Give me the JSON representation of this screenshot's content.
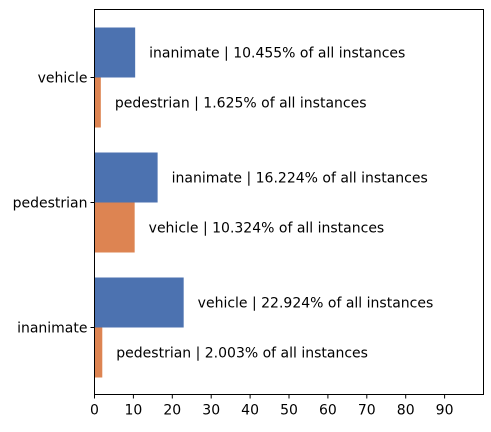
{
  "chart_data": {
    "type": "bar",
    "orientation": "horizontal",
    "categories": [
      "vehicle",
      "pedestrian",
      "inanimate"
    ],
    "series": [
      {
        "color": "#4C72B0",
        "values": [
          10.455,
          16.224,
          22.924
        ],
        "labels": [
          "inanimate | 10.455% of all instances",
          "inanimate | 16.224% of all instances",
          "vehicle | 22.924% of all instances"
        ]
      },
      {
        "color": "#DD8452",
        "values": [
          1.625,
          10.324,
          2.003
        ],
        "labels": [
          "pedestrian | 1.625% of all instances",
          "vehicle | 10.324% of all instances",
          "pedestrian | 2.003% of all instances"
        ]
      }
    ],
    "xlim": [
      0,
      100
    ],
    "xticks": [
      "0",
      "10",
      "20",
      "30",
      "40",
      "50",
      "60",
      "70",
      "80",
      "90"
    ],
    "grid": false,
    "legend": "none"
  }
}
